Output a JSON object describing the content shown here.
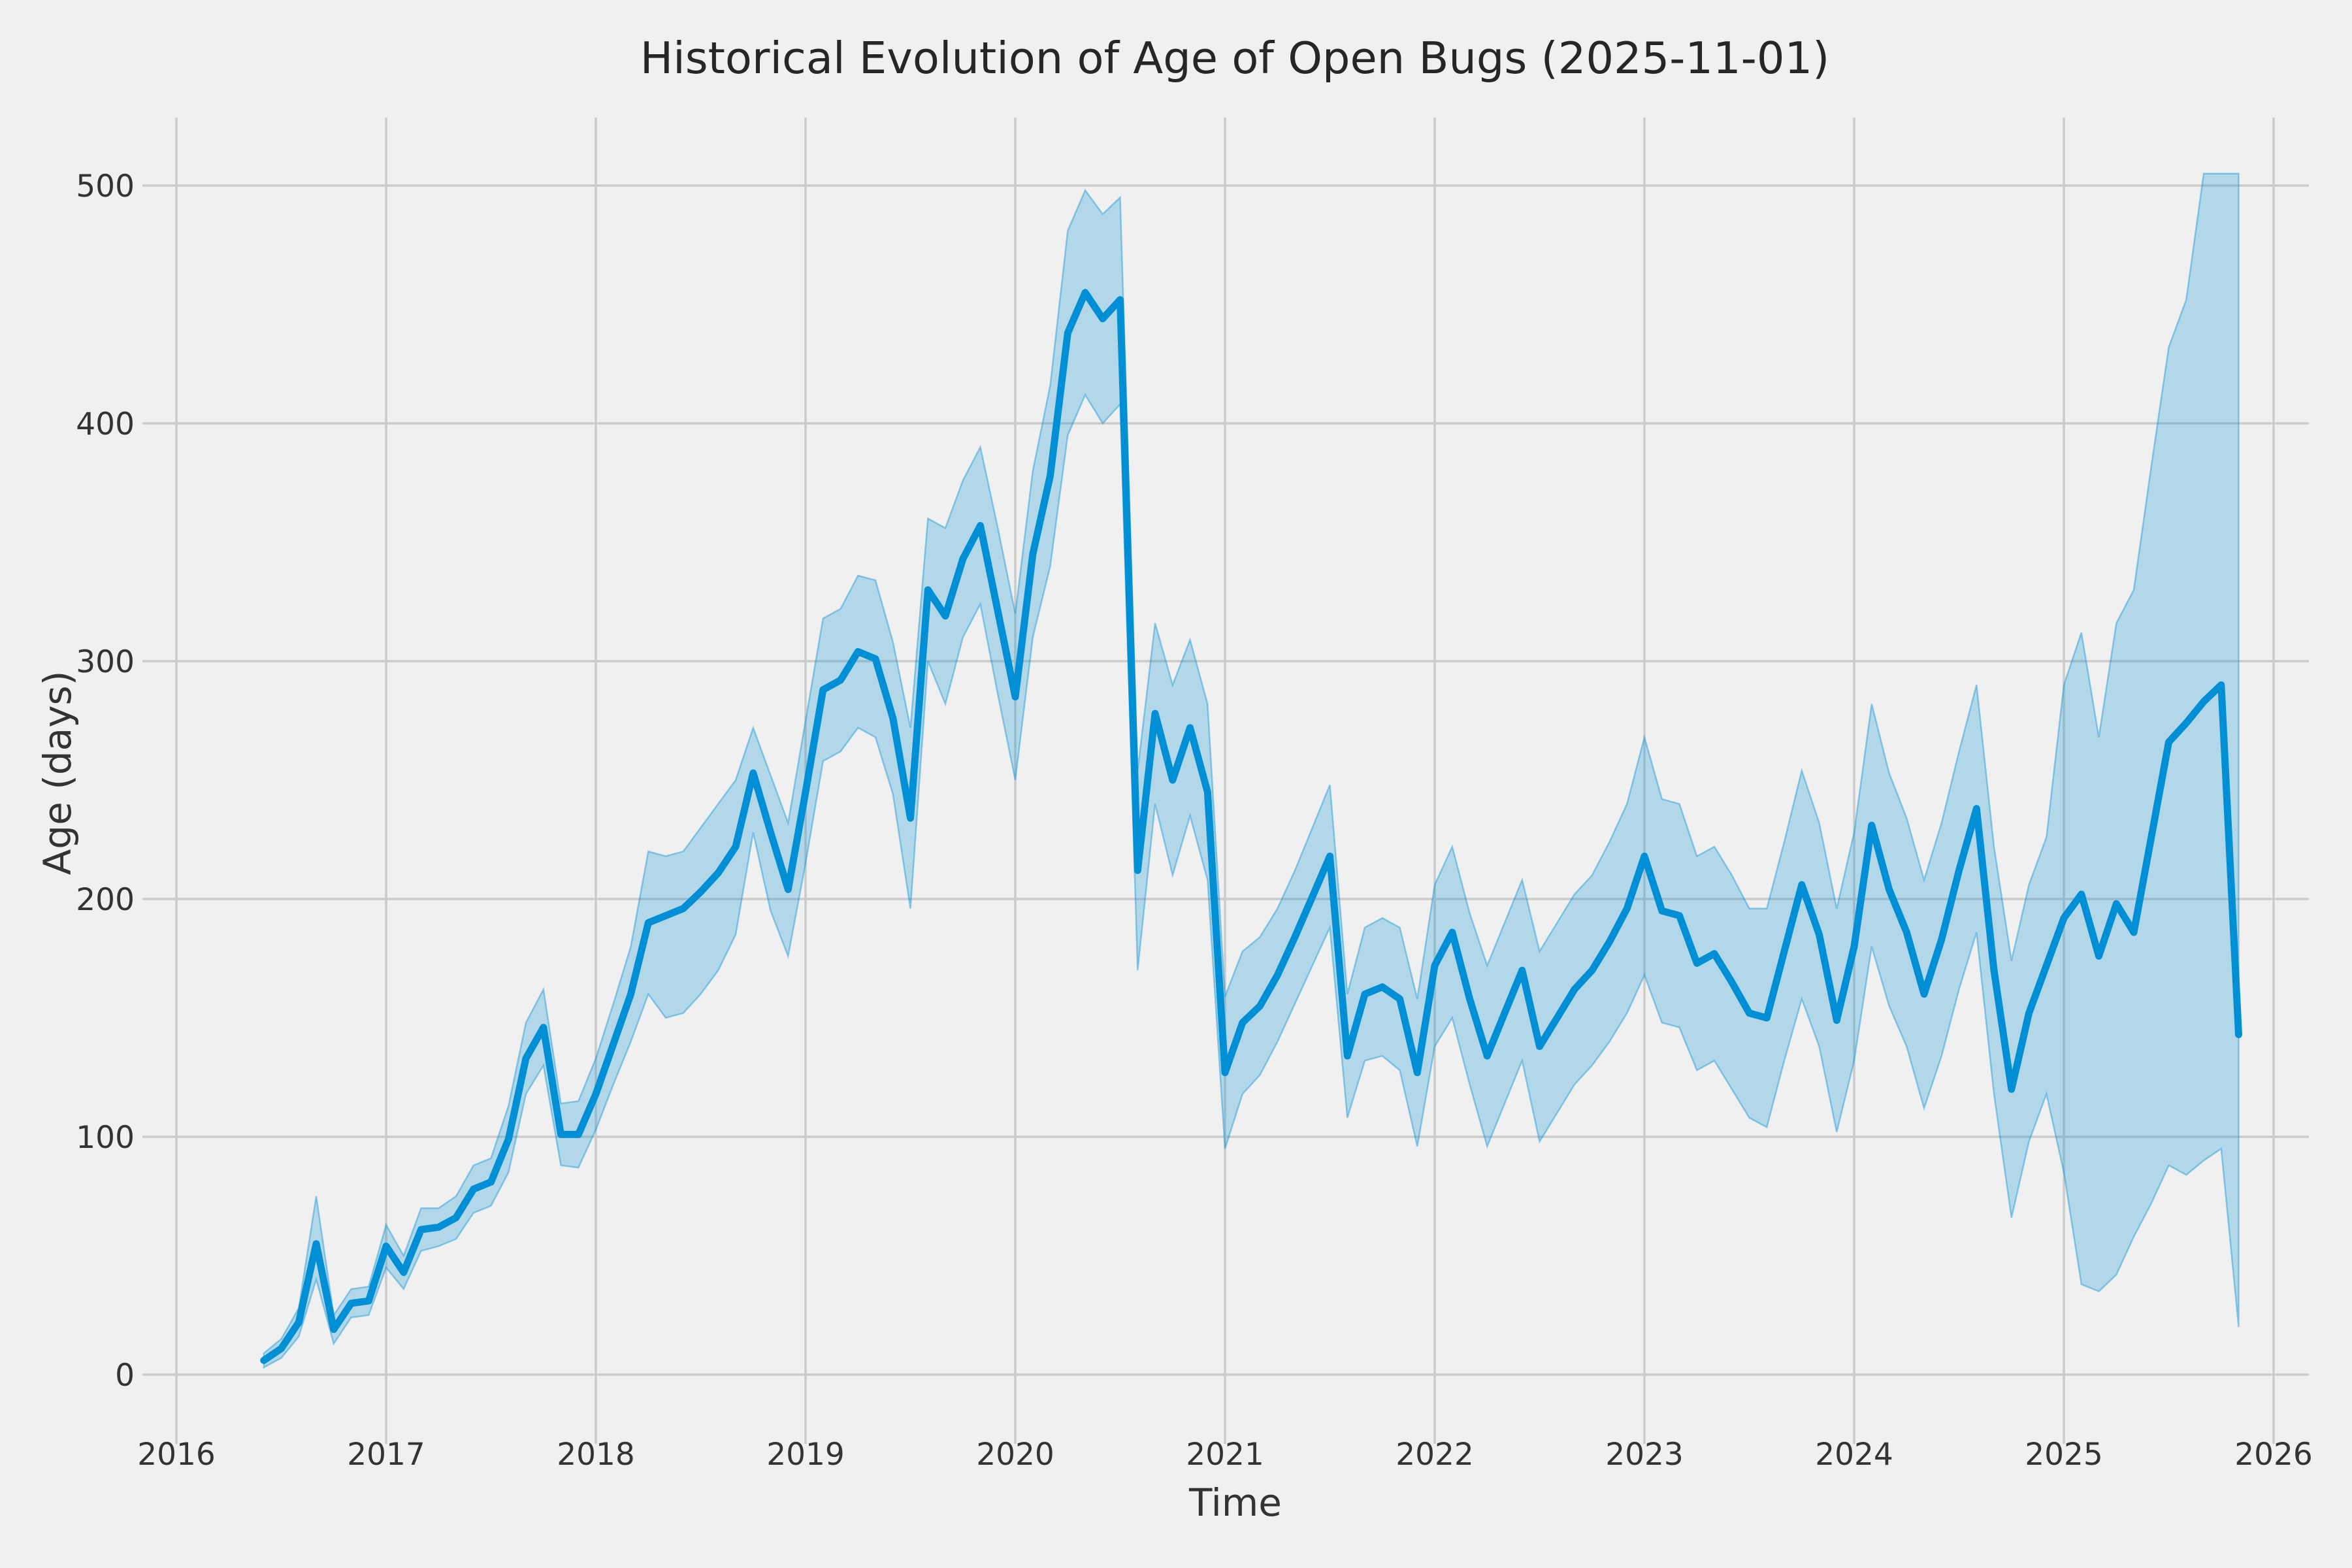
{
  "title": "Historical Evolution of Age of Open Bugs (2025-11-01)",
  "axes": {
    "xlabel": "Time",
    "ylabel": "Age (days)",
    "x_ticks": [
      2016,
      2017,
      2018,
      2019,
      2020,
      2021,
      2022,
      2023,
      2024,
      2025,
      2026
    ],
    "y_ticks": [
      0,
      100,
      200,
      300,
      400,
      500
    ]
  },
  "colors": {
    "background": "#f0f0f0",
    "grid": "#cbcbcb",
    "line": "#008fd5",
    "band_fill": "rgba(0,143,213,0.26)",
    "text": "#333333"
  },
  "chart_data": {
    "type": "line",
    "title": "Historical Evolution of Age of Open Bugs (2025-11-01)",
    "xlabel": "Time",
    "ylabel": "Age (days)",
    "legend_position": "none",
    "grid": true,
    "xlim_years": [
      2015.93,
      2026.17
    ],
    "ylim": [
      -21,
      528
    ],
    "series_note": "monthly mean age of open bugs with confidence band (lo/hi)",
    "months": [
      "2016-05",
      "2016-06",
      "2016-07",
      "2016-08",
      "2016-09",
      "2016-10",
      "2016-11",
      "2016-12",
      "2017-01",
      "2017-02",
      "2017-03",
      "2017-04",
      "2017-05",
      "2017-06",
      "2017-07",
      "2017-08",
      "2017-09",
      "2017-10",
      "2017-11",
      "2017-12",
      "2018-01",
      "2018-02",
      "2018-03",
      "2018-04",
      "2018-05",
      "2018-06",
      "2018-07",
      "2018-08",
      "2018-09",
      "2018-10",
      "2018-11",
      "2018-12",
      "2019-01",
      "2019-02",
      "2019-03",
      "2019-04",
      "2019-05",
      "2019-06",
      "2019-07",
      "2019-08",
      "2019-09",
      "2019-10",
      "2019-11",
      "2019-12",
      "2020-01",
      "2020-02",
      "2020-03",
      "2020-04",
      "2020-05",
      "2020-06",
      "2020-07",
      "2020-08",
      "2020-09",
      "2020-10",
      "2020-11",
      "2020-12",
      "2021-01",
      "2021-02",
      "2021-03",
      "2021-04",
      "2021-05",
      "2021-06",
      "2021-07",
      "2021-08",
      "2021-09",
      "2021-10",
      "2021-11",
      "2021-12",
      "2022-01",
      "2022-02",
      "2022-03",
      "2022-04",
      "2022-05",
      "2022-06",
      "2022-07",
      "2022-08",
      "2022-09",
      "2022-10",
      "2022-11",
      "2022-12",
      "2023-01",
      "2023-02",
      "2023-03",
      "2023-04",
      "2023-05",
      "2023-06",
      "2023-07",
      "2023-08",
      "2023-09",
      "2023-10",
      "2023-11",
      "2023-12",
      "2024-01",
      "2024-02",
      "2024-03",
      "2024-04",
      "2024-05",
      "2024-06",
      "2024-07",
      "2024-08",
      "2024-09",
      "2024-10",
      "2024-11",
      "2024-12",
      "2025-01",
      "2025-02",
      "2025-03",
      "2025-04",
      "2025-05",
      "2025-06",
      "2025-07",
      "2025-08",
      "2025-09",
      "2025-10"
    ],
    "mean": [
      6,
      11,
      22,
      55,
      19,
      30,
      31,
      54,
      43,
      61,
      62,
      66,
      78,
      81,
      99,
      133,
      146,
      101,
      101,
      118,
      139,
      160,
      190,
      193,
      196,
      203,
      211,
      222,
      253,
      228,
      204,
      245,
      288,
      292,
      304,
      301,
      276,
      234,
      330,
      319,
      343,
      357,
      321,
      285,
      345,
      378,
      438,
      455,
      444,
      452,
      212,
      278,
      250,
      272,
      245,
      127,
      148,
      155,
      168,
      184,
      201,
      218,
      134,
      160,
      163,
      158,
      127,
      172,
      186,
      158,
      134,
      152,
      170,
      138,
      150,
      162,
      170,
      182,
      196,
      218,
      195,
      193,
      173,
      177,
      165,
      152,
      150,
      178,
      206,
      185,
      149,
      180,
      231,
      204,
      186,
      160,
      183,
      212,
      238,
      170,
      120,
      152,
      172,
      192,
      202,
      176,
      198,
      186,
      226,
      266,
      274,
      283,
      290,
      143
    ],
    "lo": [
      3,
      7,
      16,
      40,
      13,
      24,
      25,
      45,
      36,
      52,
      54,
      57,
      68,
      71,
      85,
      118,
      130,
      88,
      87,
      103,
      122,
      140,
      160,
      150,
      152,
      160,
      170,
      185,
      228,
      195,
      176,
      215,
      258,
      262,
      272,
      268,
      244,
      196,
      300,
      282,
      310,
      324,
      286,
      250,
      310,
      340,
      395,
      412,
      400,
      408,
      170,
      240,
      210,
      235,
      208,
      95,
      118,
      126,
      140,
      156,
      172,
      188,
      108,
      132,
      134,
      128,
      96,
      138,
      150,
      122,
      96,
      114,
      132,
      98,
      110,
      122,
      130,
      140,
      152,
      168,
      148,
      146,
      128,
      132,
      120,
      108,
      104,
      132,
      158,
      138,
      102,
      132,
      180,
      155,
      138,
      112,
      134,
      162,
      186,
      118,
      66,
      98,
      118,
      85,
      38,
      35,
      42,
      58,
      72,
      88,
      84,
      90,
      95,
      20
    ],
    "hi": [
      9,
      15,
      28,
      75,
      25,
      36,
      37,
      63,
      50,
      70,
      70,
      75,
      88,
      91,
      113,
      148,
      162,
      114,
      115,
      133,
      156,
      180,
      220,
      218,
      220,
      230,
      240,
      250,
      272,
      252,
      232,
      275,
      318,
      322,
      336,
      334,
      308,
      272,
      360,
      356,
      376,
      390,
      356,
      320,
      380,
      416,
      481,
      498,
      488,
      495,
      254,
      316,
      290,
      309,
      282,
      159,
      178,
      184,
      196,
      212,
      230,
      248,
      160,
      188,
      192,
      188,
      158,
      206,
      222,
      194,
      172,
      190,
      208,
      178,
      190,
      202,
      210,
      224,
      240,
      268,
      242,
      240,
      218,
      222,
      210,
      196,
      196,
      224,
      254,
      232,
      196,
      228,
      282,
      253,
      234,
      208,
      232,
      262,
      290,
      222,
      174,
      206,
      226,
      290,
      312,
      268,
      316,
      330,
      382,
      432,
      452,
      505,
      505,
      505
    ]
  }
}
